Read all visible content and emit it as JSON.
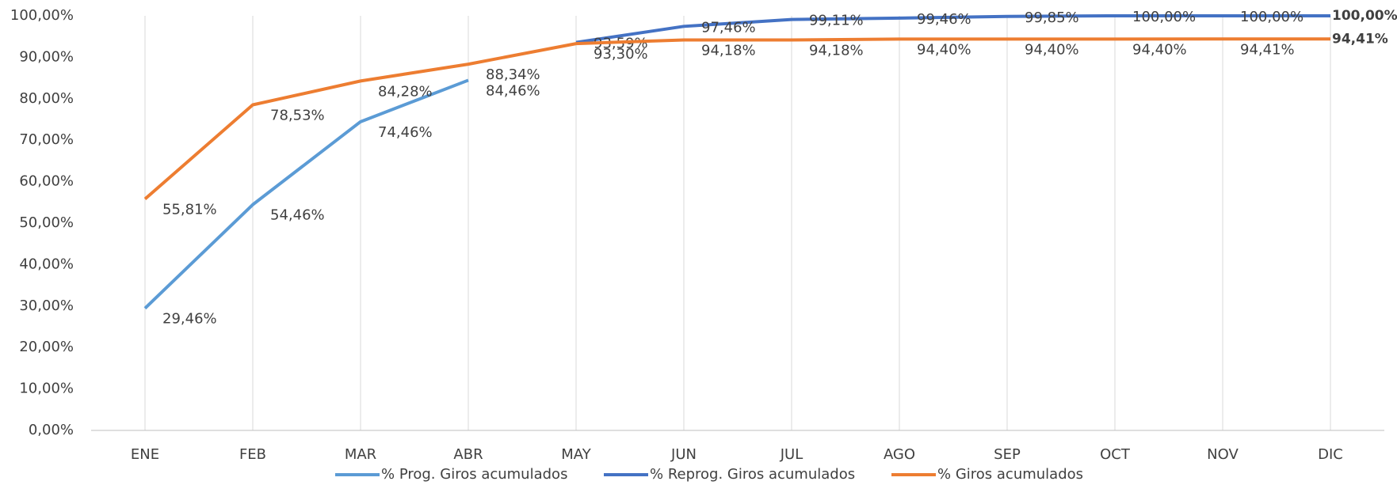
{
  "chart_data": {
    "type": "line",
    "categories": [
      "ENE",
      "FEB",
      "MAR",
      "ABR",
      "MAY",
      "JUN",
      "JUL",
      "AGO",
      "SEP",
      "OCT",
      "NOV",
      "DIC"
    ],
    "series": [
      {
        "name": "% Prog. Giros acumulados",
        "color": "#5b9bd5",
        "values": [
          29.46,
          54.46,
          74.46,
          84.46,
          null,
          null,
          null,
          null,
          null,
          null,
          null,
          null
        ],
        "value_labels": [
          "29,46%",
          "54,46%",
          "74,46%",
          "84,46%",
          null,
          null,
          null,
          null,
          null,
          null,
          null,
          null
        ]
      },
      {
        "name": "% Reprog. Giros acumulados",
        "color": "#4472c4",
        "values": [
          null,
          null,
          null,
          null,
          93.59,
          97.46,
          99.11,
          99.46,
          99.85,
          100,
          100,
          100
        ],
        "value_labels": [
          null,
          null,
          null,
          null,
          "93,59%",
          "97,46%",
          "99,11%",
          "99,46%",
          "99,85%",
          "100,00%",
          "100,00%",
          "100,00%"
        ]
      },
      {
        "name": "% Giros acumulados",
        "color": "#ed7d31",
        "values": [
          55.81,
          78.53,
          84.28,
          88.34,
          93.3,
          94.18,
          94.18,
          94.4,
          94.4,
          94.4,
          94.41,
          94.41
        ],
        "value_labels": [
          "55,81%",
          "78,53%",
          "84,28%",
          "88,34%",
          "93,30%",
          "94,18%",
          "94,18%",
          "94,40%",
          "94,40%",
          "94,40%",
          "94,41%",
          "94,41%"
        ]
      }
    ],
    "ylim": [
      0,
      100
    ],
    "yticks": [
      {
        "value": 0,
        "label": "0,00%"
      },
      {
        "value": 10,
        "label": "10,00%"
      },
      {
        "value": 20,
        "label": "20,00%"
      },
      {
        "value": 30,
        "label": "30,00%"
      },
      {
        "value": 40,
        "label": "40,00%"
      },
      {
        "value": 50,
        "label": "50,00%"
      },
      {
        "value": 60,
        "label": "60,00%"
      },
      {
        "value": 70,
        "label": "70,00%"
      },
      {
        "value": 80,
        "label": "80,00%"
      },
      {
        "value": 90,
        "label": "90,00%"
      },
      {
        "value": 100,
        "label": "100,00%"
      }
    ],
    "grid": true,
    "legend": "bottom"
  }
}
